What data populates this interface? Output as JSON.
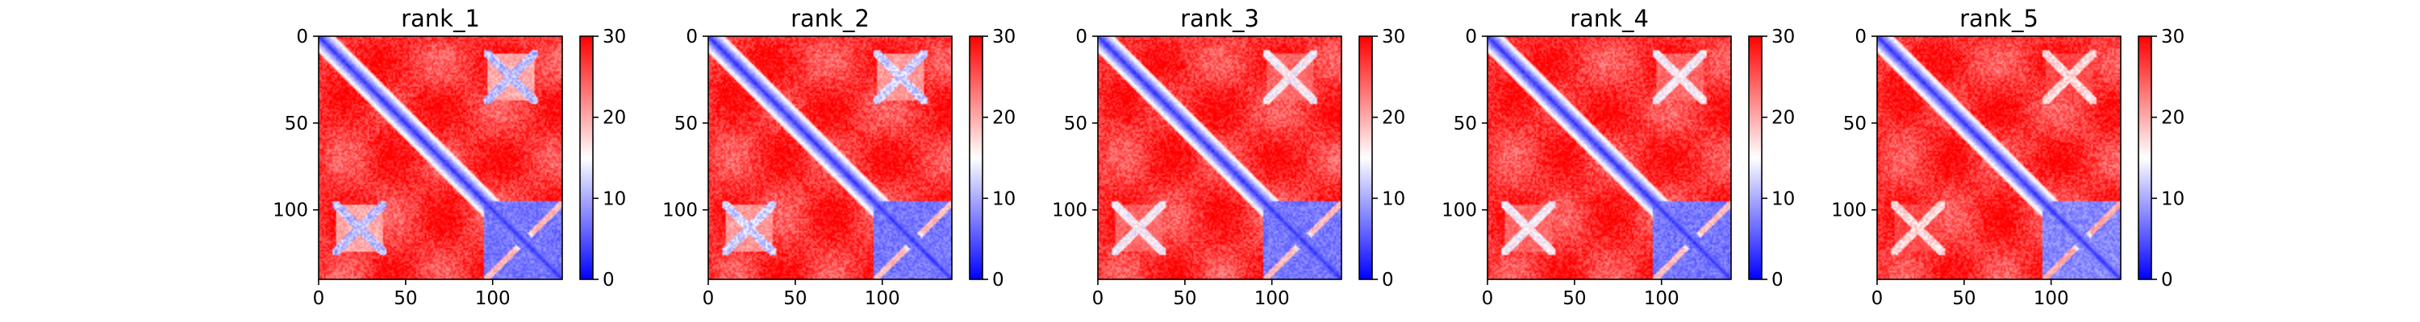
{
  "chart_data": [
    {
      "type": "heatmap",
      "title": "rank_1",
      "matrix_size": 140,
      "x_ticks": [
        0,
        50,
        100
      ],
      "y_ticks": [
        0,
        50,
        100
      ],
      "xlim": [
        0,
        140
      ],
      "ylim": [
        140,
        0
      ],
      "color_range": [
        0,
        30
      ],
      "colorbar_ticks": [
        0,
        10,
        20,
        30
      ],
      "colormap": {
        "low": "#0000ff",
        "mid": "#ffffff",
        "high": "#ff0000"
      },
      "low_value_regions": [
        {
          "rows": [
            0,
            140
          ],
          "cols": [
            0,
            140
          ],
          "shape": "diagonal band",
          "value": 2
        },
        {
          "rows": [
            8,
            38
          ],
          "cols": [
            95,
            125
          ],
          "shape": "cross",
          "value": 8
        },
        {
          "rows": [
            95,
            130
          ],
          "cols": [
            8,
            38
          ],
          "shape": "cross",
          "value": 8
        },
        {
          "rows": [
            95,
            140
          ],
          "cols": [
            95,
            140
          ],
          "shape": "block",
          "value": 5
        }
      ]
    },
    {
      "type": "heatmap",
      "title": "rank_2",
      "matrix_size": 140,
      "x_ticks": [
        0,
        50,
        100
      ],
      "y_ticks": [
        0,
        50,
        100
      ],
      "xlim": [
        0,
        140
      ],
      "ylim": [
        140,
        0
      ],
      "color_range": [
        0,
        30
      ],
      "colorbar_ticks": [
        0,
        10,
        20,
        30
      ],
      "colormap": {
        "low": "#0000ff",
        "mid": "#ffffff",
        "high": "#ff0000"
      },
      "low_value_regions": [
        {
          "rows": [
            0,
            140
          ],
          "cols": [
            0,
            140
          ],
          "shape": "diagonal band",
          "value": 2
        },
        {
          "rows": [
            8,
            38
          ],
          "cols": [
            95,
            125
          ],
          "shape": "cross",
          "value": 9
        },
        {
          "rows": [
            95,
            130
          ],
          "cols": [
            8,
            38
          ],
          "shape": "cross",
          "value": 9
        },
        {
          "rows": [
            95,
            140
          ],
          "cols": [
            95,
            140
          ],
          "shape": "block",
          "value": 5
        }
      ]
    },
    {
      "type": "heatmap",
      "title": "rank_3",
      "matrix_size": 140,
      "x_ticks": [
        0,
        50,
        100
      ],
      "y_ticks": [
        0,
        50,
        100
      ],
      "xlim": [
        0,
        140
      ],
      "ylim": [
        140,
        0
      ],
      "color_range": [
        0,
        30
      ],
      "colorbar_ticks": [
        0,
        10,
        20,
        30
      ],
      "colormap": {
        "low": "#0000ff",
        "mid": "#ffffff",
        "high": "#ff0000"
      },
      "low_value_regions": [
        {
          "rows": [
            0,
            140
          ],
          "cols": [
            0,
            140
          ],
          "shape": "diagonal band",
          "value": 2
        },
        {
          "rows": [
            8,
            38
          ],
          "cols": [
            95,
            125
          ],
          "shape": "cross",
          "value": 12
        },
        {
          "rows": [
            95,
            130
          ],
          "cols": [
            8,
            38
          ],
          "shape": "cross",
          "value": 12
        },
        {
          "rows": [
            95,
            140
          ],
          "cols": [
            95,
            140
          ],
          "shape": "block",
          "value": 5
        }
      ]
    },
    {
      "type": "heatmap",
      "title": "rank_4",
      "matrix_size": 140,
      "x_ticks": [
        0,
        50,
        100
      ],
      "y_ticks": [
        0,
        50,
        100
      ],
      "xlim": [
        0,
        140
      ],
      "ylim": [
        140,
        0
      ],
      "color_range": [
        0,
        30
      ],
      "colorbar_ticks": [
        0,
        10,
        20,
        30
      ],
      "colormap": {
        "low": "#0000ff",
        "mid": "#ffffff",
        "high": "#ff0000"
      },
      "low_value_regions": [
        {
          "rows": [
            0,
            140
          ],
          "cols": [
            0,
            140
          ],
          "shape": "diagonal band",
          "value": 2
        },
        {
          "rows": [
            8,
            38
          ],
          "cols": [
            95,
            125
          ],
          "shape": "cross",
          "value": 12
        },
        {
          "rows": [
            95,
            130
          ],
          "cols": [
            8,
            38
          ],
          "shape": "cross",
          "value": 12
        },
        {
          "rows": [
            95,
            140
          ],
          "cols": [
            95,
            140
          ],
          "shape": "block",
          "value": 5
        }
      ]
    },
    {
      "type": "heatmap",
      "title": "rank_5",
      "matrix_size": 140,
      "x_ticks": [
        0,
        50,
        100
      ],
      "y_ticks": [
        0,
        50,
        100
      ],
      "xlim": [
        0,
        140
      ],
      "ylim": [
        140,
        0
      ],
      "color_range": [
        0,
        30
      ],
      "colorbar_ticks": [
        0,
        10,
        20,
        30
      ],
      "colormap": {
        "low": "#0000ff",
        "mid": "#ffffff",
        "high": "#ff0000"
      },
      "low_value_regions": [
        {
          "rows": [
            0,
            140
          ],
          "cols": [
            0,
            140
          ],
          "shape": "diagonal band",
          "value": 2
        },
        {
          "rows": [
            8,
            38
          ],
          "cols": [
            95,
            125
          ],
          "shape": "cross",
          "value": 14
        },
        {
          "rows": [
            95,
            130
          ],
          "cols": [
            8,
            38
          ],
          "shape": "cross",
          "value": 14
        },
        {
          "rows": [
            95,
            140
          ],
          "cols": [
            95,
            140
          ],
          "shape": "block",
          "value": 6
        }
      ]
    }
  ]
}
